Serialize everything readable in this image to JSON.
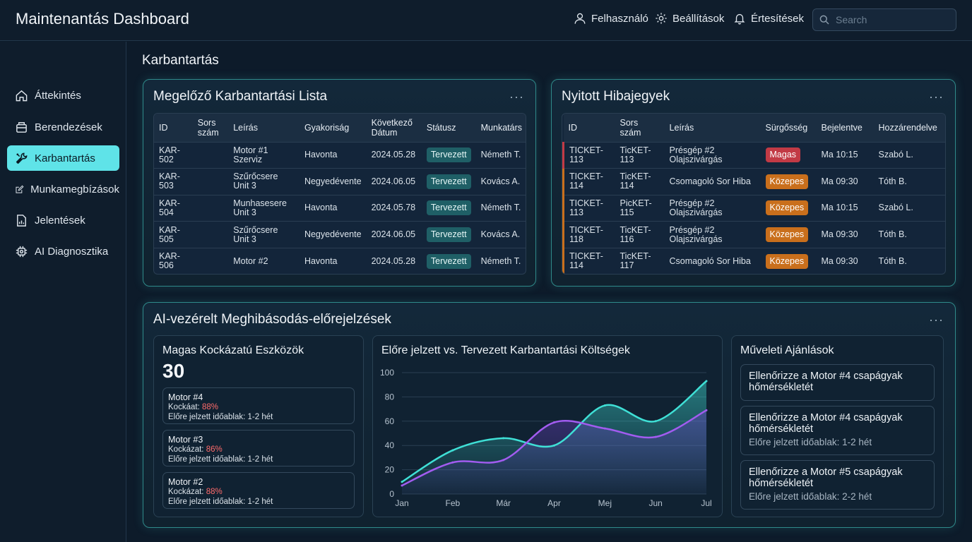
{
  "app": {
    "title": "Maintenantás Dashboard"
  },
  "topnav": {
    "user_label": "Felhasználó",
    "settings_label": "Beállítások",
    "notifications_label": "Értesítések",
    "search_placeholder": "Search"
  },
  "sidebar": {
    "items": [
      {
        "label": "Áttekintés",
        "icon": "home-icon"
      },
      {
        "label": "Berendezések",
        "icon": "equipment-icon"
      },
      {
        "label": "Karbantartás",
        "icon": "tools-icon",
        "active": true
      },
      {
        "label": "Munkamegbízások",
        "icon": "edit-icon"
      },
      {
        "label": "Jelentések",
        "icon": "report-icon"
      },
      {
        "label": "AI Diagnosztika",
        "icon": "ai-chip-icon"
      }
    ]
  },
  "page": {
    "section_title": "Karbantartás"
  },
  "preventive": {
    "title": "Megelőző Karbantartási Lista",
    "menu": "···",
    "columns": [
      "ID",
      "Sors szám",
      "Leírás",
      "Gyakoriság",
      "Következő Dátum",
      "Státusz",
      "Munkatárs"
    ],
    "rows": [
      [
        "KAR-502",
        "",
        "Motor #1 Szerviz",
        "Havonta",
        "2024.05.28",
        "Tervezett",
        "Németh T."
      ],
      [
        "KAR-503",
        "",
        "Szűrőcsere Unit 3",
        "Negyedévente",
        "2024.06.05",
        "Tervezett",
        "Kovács A."
      ],
      [
        "KAR-504",
        "",
        "Munhasesere Unit 3",
        "Havonta",
        "2024.05.78",
        "Tervezett",
        "Németh T."
      ],
      [
        "KAR-505",
        "",
        "Szűrőcsere Unit 3",
        "Negyedévente",
        "2024.06.05",
        "Tervezett",
        "Kovács A."
      ],
      [
        "KAR-506",
        "",
        "Motor #2",
        "Havonta",
        "2024.05.28",
        "Tervezett",
        "Németh T."
      ]
    ]
  },
  "tickets": {
    "title": "Nyitott Hibajegyek",
    "menu": "···",
    "columns": [
      "ID",
      "Sors szám",
      "Leírás",
      "Sürgősség",
      "Bejelentve",
      "Hozzárendelve"
    ],
    "rows": [
      [
        "TICKET-113",
        "TicKET-113",
        "Présgép #2 Olajszivárgás",
        "Magas",
        "Ma 10:15",
        "Szabó L."
      ],
      [
        "TICKET-114",
        "TicKET-114",
        "Csomagoló Sor Hiba",
        "Közepes",
        "Ma 09:30",
        "Tóth B."
      ],
      [
        "TICKET-113",
        "PicKET-115",
        "Présgép #2 Olajszivárgás",
        "Közepes",
        "Ma 10:15",
        "Szabó L."
      ],
      [
        "TICKET-118",
        "TicKET-116",
        "Présgép #2 Olajszivárgás",
        "Közepes",
        "Ma 09:30",
        "Tóth B."
      ],
      [
        "TICKET-114",
        "TicKET-117",
        "Csomagoló Sor Hiba",
        "Közepes",
        "Ma 09:30",
        "Tóth B."
      ]
    ],
    "severity_colors": {
      "Magas": "#c23a45",
      "Közepes": "#c96f1c"
    }
  },
  "ai": {
    "title": "AI-vezérelt Meghibásodás-előrejelzések",
    "menu": "···",
    "risk": {
      "title": "Magas Kockázatú Eszközök",
      "count": "30",
      "items": [
        {
          "name": "Motor #4",
          "risk_label": "Kockáat:",
          "risk_value": "88%",
          "window": "Előre jelzett időablak: 1-2 hét"
        },
        {
          "name": "Motor #3",
          "risk_label": "Kockázat:",
          "risk_value": "86%",
          "window": "Előre jelzett időablak: 1-2 hét"
        },
        {
          "name": "Motor #2",
          "risk_label": "Kockázat:",
          "risk_value": "88%",
          "window": "Előre jelzett időablak: 1-2 hét"
        }
      ]
    },
    "recommendations": {
      "title": "Műveleti Ajánlások",
      "items": [
        {
          "text": "Ellenőrizze a Motor #4 csapágyak hőmérsékletét",
          "sub": ""
        },
        {
          "text": "Ellenőrizze a Motor #4 csapágyak hőmérsékletét",
          "sub": "Előre jelzett időablak: 1-2 hét"
        },
        {
          "text": "Ellenőrizze a Motor #5 csapágyak hőmérsékletét",
          "sub": "Előre jelzett időablak: 2-2 hét"
        }
      ]
    }
  },
  "chart_data": {
    "type": "line",
    "title": "Előre jelzett vs. Tervezett Karbantartási Költségek",
    "categories": [
      "Jan",
      "Feb",
      "Már",
      "Apr",
      "Mej",
      "Jun",
      "Jul"
    ],
    "ylim": [
      0,
      100
    ],
    "yticks": [
      0,
      20,
      40,
      60,
      80,
      100
    ],
    "series": [
      {
        "color": "#3fe0d6",
        "values": [
          10,
          36,
          46,
          40,
          73,
          60,
          93
        ]
      },
      {
        "color": "#a25cf0",
        "values": [
          7,
          26,
          28,
          59,
          54,
          47,
          69
        ]
      }
    ],
    "grid": true
  }
}
